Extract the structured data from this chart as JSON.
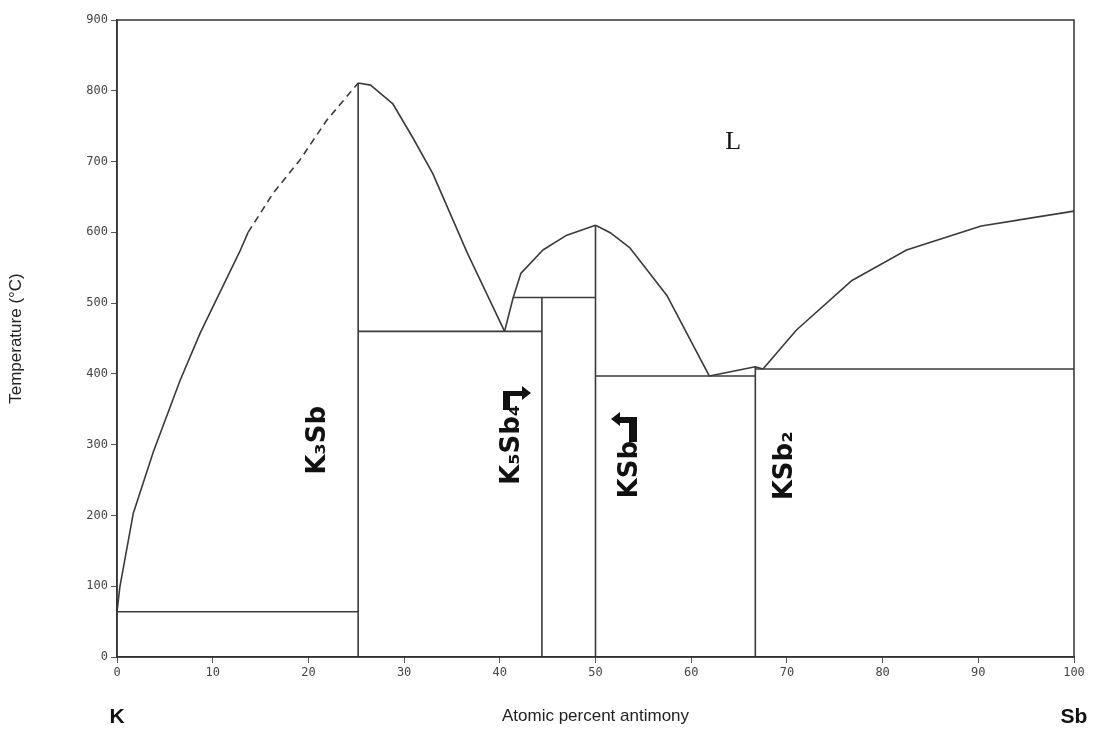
{
  "chart_data": {
    "type": "line",
    "xlabel": "Atomic percent antimony",
    "ylabel": "Temperature (°C)",
    "xlim": [
      0,
      100
    ],
    "xticks": [
      0,
      10,
      20,
      30,
      40,
      50,
      60,
      70,
      80,
      90,
      100
    ],
    "ylim": [
      0,
      900
    ],
    "yticks": [
      0,
      100,
      200,
      300,
      400,
      500,
      600,
      700,
      800,
      900
    ],
    "grid": false,
    "marker": "none",
    "line_style": "solid",
    "series": [
      {
        "color": "#3a3a3a",
        "x": [
          0,
          0.3,
          1.7,
          3.8,
          6.6,
          8.7,
          12.9,
          13.7
        ],
        "values": [
          64,
          99,
          203,
          290,
          391,
          458,
          575,
          600
        ]
      },
      {
        "color": "#3a3a3a",
        "line_style": "dashed",
        "x": [
          13.7,
          16.3,
          19.1,
          21.9,
          25.2
        ],
        "values": [
          600,
          655,
          702,
          758,
          811
        ]
      },
      {
        "color": "#3a3a3a",
        "x": [
          25.2,
          26.5,
          28.8,
          30.9,
          33,
          36.6,
          40.5
        ],
        "values": [
          811,
          808,
          782,
          734,
          683,
          571,
          460
        ]
      },
      {
        "color": "#3a3a3a",
        "x": [
          40.5,
          41.4,
          42.2,
          44.5,
          47,
          50
        ],
        "values": [
          460,
          508,
          542,
          575,
          596,
          610
        ]
      },
      {
        "color": "#3a3a3a",
        "x": [
          50,
          51.6,
          53.6,
          57.5,
          61.9
        ],
        "values": [
          610,
          599,
          578,
          510,
          397
        ]
      },
      {
        "color": "#3a3a3a",
        "x": [
          61.9,
          66.7,
          67.5
        ],
        "values": [
          397,
          410,
          407
        ]
      },
      {
        "color": "#3a3a3a",
        "x": [
          67.5,
          71,
          76.8,
          82.5,
          90.3,
          100
        ],
        "values": [
          407,
          462,
          532,
          575,
          609,
          630
        ]
      },
      {
        "color": "#3a3a3a",
        "x": [
          0,
          25.2
        ],
        "values": [
          64,
          64
        ]
      },
      {
        "color": "#3a3a3a",
        "x": [
          25.2,
          44.4
        ],
        "values": [
          460,
          460
        ]
      },
      {
        "color": "#3a3a3a",
        "x": [
          41.4,
          50
        ],
        "values": [
          508,
          508
        ]
      },
      {
        "color": "#3a3a3a",
        "x": [
          50,
          66.7
        ],
        "values": [
          397,
          397
        ]
      },
      {
        "color": "#3a3a3a",
        "x": [
          66.7,
          100
        ],
        "values": [
          407,
          407
        ]
      },
      {
        "color": "#3a3a3a",
        "x": [
          25.2,
          25.2
        ],
        "values": [
          0,
          811
        ]
      },
      {
        "color": "#3a3a3a",
        "x": [
          44.4,
          44.4
        ],
        "values": [
          0,
          508
        ]
      },
      {
        "color": "#3a3a3a",
        "x": [
          50,
          50
        ],
        "values": [
          0,
          610
        ]
      },
      {
        "color": "#3a3a3a",
        "x": [
          66.7,
          66.7
        ],
        "values": [
          0,
          410
        ]
      }
    ],
    "annotations": [
      "L",
      "K₃Sb",
      "K₅Sb₄",
      "KSb",
      "KSb₂",
      "K",
      "Sb"
    ]
  }
}
